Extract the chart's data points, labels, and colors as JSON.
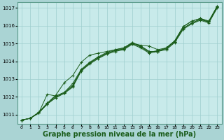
{
  "background_color": "#aad4d4",
  "plot_bg_color": "#c8eaea",
  "grid_color": "#9ecece",
  "line_color": "#1a5c1a",
  "marker_color": "#1a5c1a",
  "xlabel": "Graphe pression niveau de la mer (hPa)",
  "xlabel_fontsize": 7.0,
  "xlim": [
    -0.5,
    23.5
  ],
  "ylim": [
    1010.5,
    1017.3
  ],
  "yticks": [
    1011,
    1012,
    1013,
    1014,
    1015,
    1016,
    1017
  ],
  "xticks": [
    0,
    1,
    2,
    3,
    4,
    5,
    6,
    7,
    8,
    9,
    10,
    11,
    12,
    13,
    14,
    15,
    16,
    17,
    18,
    19,
    20,
    21,
    22,
    23
  ],
  "series": [
    [
      1010.7,
      1010.8,
      1011.1,
      1011.6,
      1012.0,
      1012.2,
      1012.6,
      1013.5,
      1013.9,
      1014.2,
      1014.45,
      1014.6,
      1014.7,
      1015.0,
      1014.9,
      1014.85,
      1014.65,
      1014.75,
      1015.1,
      1015.85,
      1016.15,
      1016.35,
      1016.2,
      1017.05
    ],
    [
      1010.7,
      1010.8,
      1011.15,
      1011.65,
      1012.05,
      1012.25,
      1012.75,
      1013.55,
      1013.95,
      1014.25,
      1014.5,
      1014.65,
      1014.75,
      1015.05,
      1014.85,
      1014.55,
      1014.55,
      1014.75,
      1015.15,
      1015.95,
      1016.25,
      1016.4,
      1016.25,
      1017.1
    ],
    [
      1010.7,
      1010.8,
      1011.1,
      1011.65,
      1012.1,
      1012.8,
      1013.2,
      1013.95,
      1014.35,
      1014.45,
      1014.55,
      1014.65,
      1014.75,
      1015.05,
      1014.85,
      1014.55,
      1014.55,
      1014.75,
      1015.15,
      1015.95,
      1016.25,
      1016.4,
      1016.25,
      1017.1
    ],
    [
      1010.7,
      1010.8,
      1011.1,
      1012.15,
      1012.05,
      1012.25,
      1012.65,
      1013.5,
      1013.9,
      1014.2,
      1014.45,
      1014.6,
      1014.7,
      1015.0,
      1014.8,
      1014.5,
      1014.6,
      1014.7,
      1015.1,
      1015.85,
      1016.15,
      1016.35,
      1016.2,
      1017.05
    ],
    [
      1010.7,
      1010.8,
      1011.1,
      1011.6,
      1011.95,
      1012.2,
      1012.55,
      1013.45,
      1013.85,
      1014.15,
      1014.4,
      1014.55,
      1014.65,
      1014.95,
      1014.75,
      1014.45,
      1014.55,
      1014.65,
      1015.05,
      1015.8,
      1016.1,
      1016.3,
      1016.15,
      1017.0
    ]
  ]
}
